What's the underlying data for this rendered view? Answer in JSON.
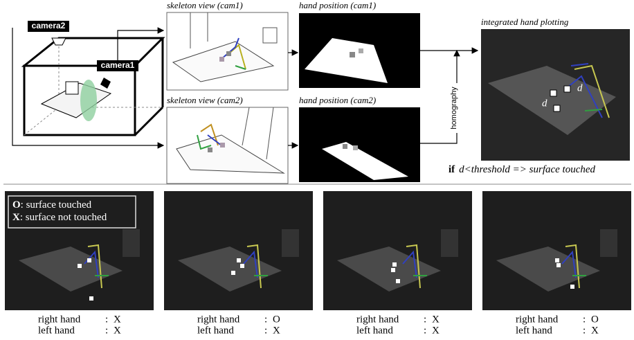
{
  "top": {
    "scene": {
      "camera2": "camera2",
      "camera1": "camera1"
    },
    "views": [
      {
        "title": "skeleton view (cam1)"
      },
      {
        "title": "hand position (cam1)"
      },
      {
        "title": "skeleton view (cam2)"
      },
      {
        "title": "hand position (cam2)"
      }
    ],
    "homography": "homography",
    "integrated": {
      "title": "integrated hand plotting",
      "d_labels": [
        "d",
        "d"
      ]
    },
    "rule": {
      "keyword": "if",
      "text": "d<threshold => surface touched"
    }
  },
  "bottom": {
    "legend": [
      {
        "symbol": "O",
        "text": ": surface touched"
      },
      {
        "symbol": "X",
        "text": ": surface not touched"
      }
    ],
    "frames": [
      {
        "rows": [
          {
            "hand": "right hand",
            "sep": ":",
            "state": "X"
          },
          {
            "hand": "left hand",
            "sep": ":",
            "state": "X"
          }
        ]
      },
      {
        "rows": [
          {
            "hand": "right hand",
            "sep": ":",
            "state": "O"
          },
          {
            "hand": "left hand",
            "sep": ":",
            "state": "X"
          }
        ]
      },
      {
        "rows": [
          {
            "hand": "right hand",
            "sep": ":",
            "state": "X"
          },
          {
            "hand": "left hand",
            "sep": ":",
            "state": "X"
          }
        ]
      },
      {
        "rows": [
          {
            "hand": "right hand",
            "sep": ":",
            "state": "O"
          },
          {
            "hand": "left hand",
            "sep": ":",
            "state": "X"
          }
        ]
      }
    ]
  }
}
